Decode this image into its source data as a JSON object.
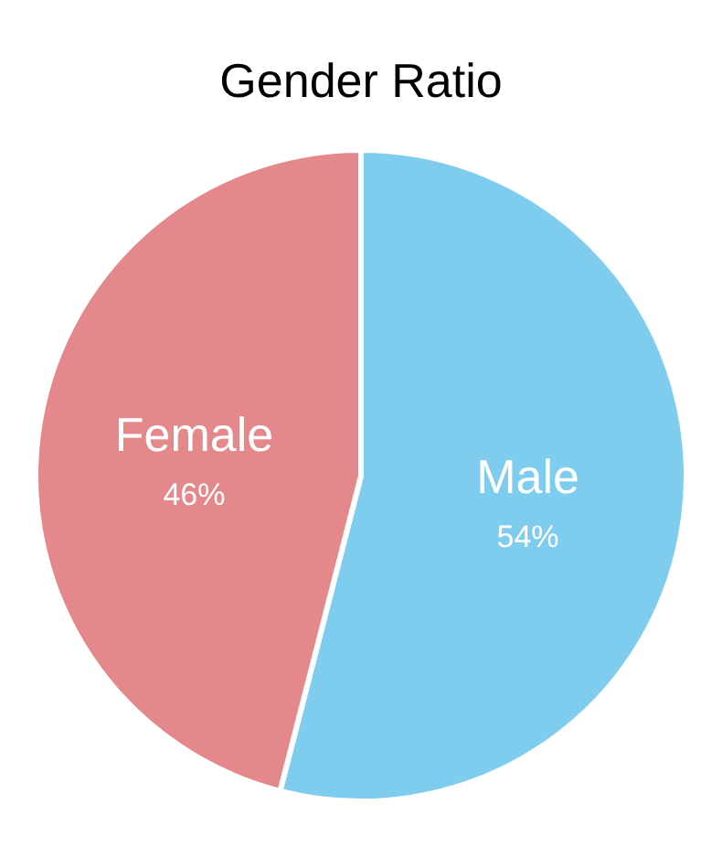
{
  "chart_data": {
    "type": "pie",
    "title": "Gender Ratio",
    "categories": [
      "Male",
      "Female"
    ],
    "values": [
      54,
      46
    ],
    "colors": [
      "#7ecdee",
      "#e5888b"
    ],
    "value_labels": [
      "54%",
      "46%"
    ]
  }
}
